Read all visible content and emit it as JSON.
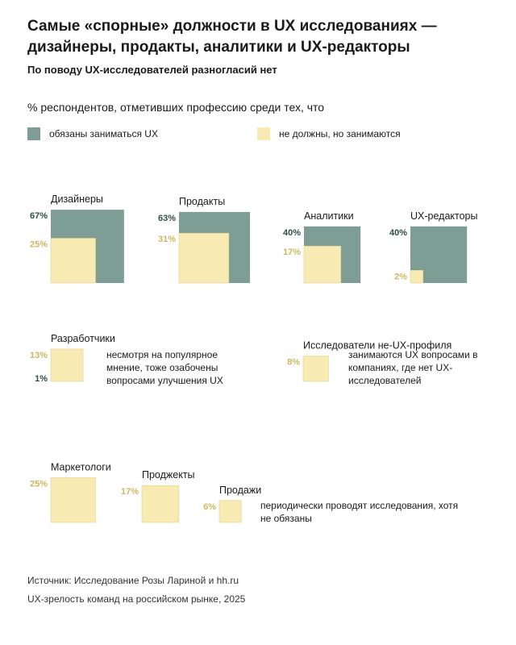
{
  "header": {
    "title": "Самые «спорные» должности в UX исследованиях — дизайнеры, продакты, аналитики и UX-редакторы",
    "subtitle": "По поводу UX-исследователей разногласий нет",
    "question": "% респондентов, отметивших профессию среди тех, что"
  },
  "colors": {
    "must": "#7e9e95",
    "should_not": "#f7ebb3",
    "must_label": "#2e4f45",
    "should_not_label": "#cbb760"
  },
  "legend": {
    "must_label": "обязаны заниматься UX",
    "should_not_label": "не должны, но занимаются"
  },
  "chart_data": {
    "type": "proportional-area-squares",
    "title": "% респондентов, отметивших профессию среди тех, что",
    "series": [
      {
        "key": "must",
        "name": "обязаны заниматься UX"
      },
      {
        "key": "should_not",
        "name": "не должны, но занимаются"
      }
    ],
    "categories": [
      {
        "name": "Дизайнеры",
        "must": 67,
        "should_not": 25,
        "must_label": "67%",
        "should_not_label": "25%"
      },
      {
        "name": "Продакты",
        "must": 63,
        "should_not": 31,
        "must_label": "63%",
        "should_not_label": "31%"
      },
      {
        "name": "Аналитики",
        "must": 40,
        "should_not": 17,
        "must_label": "40%",
        "should_not_label": "17%"
      },
      {
        "name": "UX-редакторы",
        "must": 40,
        "should_not": 2,
        "must_label": "40%",
        "should_not_label": "2%"
      },
      {
        "name": "Разработчики",
        "must": 1,
        "should_not": 13,
        "must_label": "1%",
        "should_not_label": "13%"
      },
      {
        "name": "Исследователи не-UX-профиля",
        "must": null,
        "should_not": 8,
        "must_label": null,
        "should_not_label": "8%"
      },
      {
        "name": "Маркетологи",
        "must": null,
        "should_not": 25,
        "must_label": null,
        "should_not_label": "25%"
      },
      {
        "name": "Проджекты",
        "must": null,
        "should_not": 17,
        "must_label": null,
        "should_not_label": "17%"
      },
      {
        "name": "Продажи",
        "must": null,
        "should_not": 6,
        "must_label": null,
        "should_not_label": "6%"
      }
    ]
  },
  "notes": {
    "developers": "несмотря на популярное мнение, тоже озабочены вопросами улучшения UX",
    "external_researchers": "занимаются UX вопросами в компаниях, где нет UX-исследователей",
    "sales_group": "периодически проводят исследования, хотя не обязаны"
  },
  "source": {
    "line1": "Источник: Исследование Розы Лариной и hh.ru",
    "line2": "UX-зрелость команд на российском рынке, 2025"
  }
}
